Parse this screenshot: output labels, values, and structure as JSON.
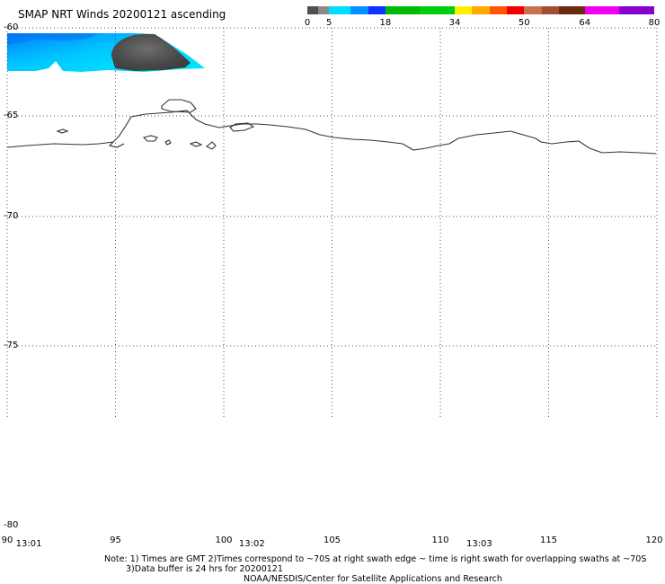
{
  "title": "SMAP NRT Winds 20200121 ascending",
  "colorbar": {
    "labels": [
      {
        "text": "0",
        "value": 0
      },
      {
        "text": "5",
        "value": 5
      },
      {
        "text": "18",
        "value": 18
      },
      {
        "text": "34",
        "value": 34
      },
      {
        "text": "50",
        "value": 50
      },
      {
        "text": "64",
        "value": 64
      },
      {
        "text": "80",
        "value": 80
      }
    ],
    "segments": [
      {
        "from": 0,
        "to": 2.5,
        "color": "#505050"
      },
      {
        "from": 2.5,
        "to": 5,
        "color": "#8a8a8a"
      },
      {
        "from": 5,
        "to": 10,
        "color": "#00ddff"
      },
      {
        "from": 10,
        "to": 14,
        "color": "#0090ff"
      },
      {
        "from": 14,
        "to": 18,
        "color": "#1030ff"
      },
      {
        "from": 18,
        "to": 26,
        "color": "#00bb00"
      },
      {
        "from": 26,
        "to": 34,
        "color": "#00cc10"
      },
      {
        "from": 34,
        "to": 38,
        "color": "#ffee00"
      },
      {
        "from": 38,
        "to": 42,
        "color": "#ffaa00"
      },
      {
        "from": 42,
        "to": 46,
        "color": "#ff5500"
      },
      {
        "from": 46,
        "to": 50,
        "color": "#ee0000"
      },
      {
        "from": 50,
        "to": 54,
        "color": "#c87050"
      },
      {
        "from": 54,
        "to": 58,
        "color": "#a05030"
      },
      {
        "from": 58,
        "to": 64,
        "color": "#6a2a10"
      },
      {
        "from": 64,
        "to": 72,
        "color": "#ee00ee"
      },
      {
        "from": 72,
        "to": 80,
        "color": "#8800cc"
      }
    ]
  },
  "latitudes": [
    {
      "text": "-60",
      "value": -60
    },
    {
      "text": "-65",
      "value": -65
    },
    {
      "text": "-70",
      "value": -70
    },
    {
      "text": "-75",
      "value": -75
    },
    {
      "text": "-80",
      "value": -80
    }
  ],
  "longitudes": [
    {
      "text": "90",
      "value": 90
    },
    {
      "text": "95",
      "value": 95
    },
    {
      "text": "100",
      "value": 100
    },
    {
      "text": "105",
      "value": 105
    },
    {
      "text": "110",
      "value": 110
    },
    {
      "text": "115",
      "value": 115
    },
    {
      "text": "120",
      "value": 120
    }
  ],
  "times": [
    {
      "text": "13:01",
      "lon": 91
    },
    {
      "text": "13:02",
      "lon": 101.3
    },
    {
      "text": "13:03",
      "lon": 111.8
    }
  ],
  "notes": {
    "line1": "Note: 1) Times are GMT 2)Times correspond to ~70S at right swath edge ~ time is right swath for overlapping swaths at ~70S",
    "line2": "3)Data buffer is 24 hrs for 20200121",
    "line3": "NOAA/NESDIS/Center for Satellite Applications and Research"
  },
  "colors": {
    "swath_cyan": "#00e0ff",
    "swath_blue": "#0090ff",
    "calm_gray": "#4a4a4a",
    "coastline": "#333333"
  }
}
